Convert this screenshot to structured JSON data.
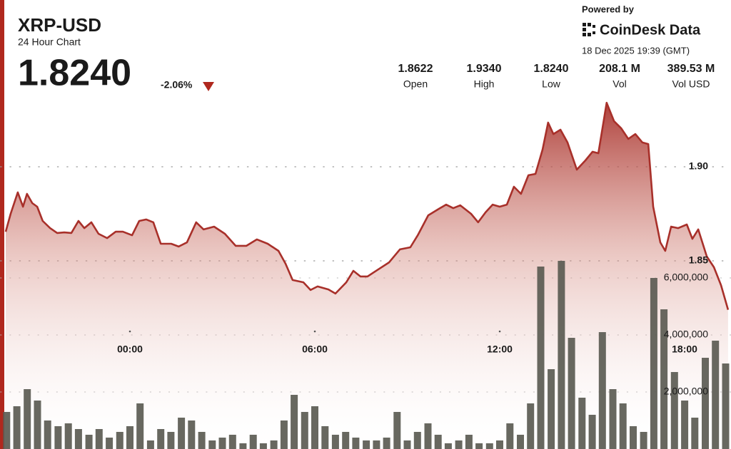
{
  "chart_data": {
    "type": "line",
    "title": "XRP-USD",
    "subtitle": "24 Hour Chart",
    "last_price": "1.8240",
    "change": "-2.06%",
    "powered_by": "Powered by",
    "brand": "CoinDesk Data",
    "timestamp": "18 Dec 2025 19:39 (GMT)",
    "stats": [
      {
        "value": "1.8622",
        "label": "Open"
      },
      {
        "value": "1.9340",
        "label": "High"
      },
      {
        "value": "1.8240",
        "label": "Low"
      },
      {
        "value": "208.1 M",
        "label": "Vol"
      },
      {
        "value": "389.53 M",
        "label": "Vol USD"
      }
    ],
    "xlim": [
      -4.2,
      19.5
    ],
    "xticks": [
      {
        "value": 0,
        "label": "00:00"
      },
      {
        "value": 6,
        "label": "06:00"
      },
      {
        "value": 12,
        "label": "12:00"
      },
      {
        "value": 18,
        "label": "18:00"
      }
    ],
    "ylim": [
      1.75,
      1.94
    ],
    "yticks": [
      1.85,
      {
        "value": 1.9,
        "label": "1.90"
      }
    ],
    "y2lim": [
      0,
      15000000
    ],
    "y2ticks": [
      {
        "value": 2000000,
        "label": "2,000,000"
      },
      {
        "value": 4000000,
        "label": "4,000,000"
      },
      {
        "value": 6000000,
        "label": "6,000,000"
      }
    ],
    "grid": true,
    "series": [
      {
        "type": "line",
        "color": "#a8302a",
        "x": [
          -4.03,
          -3.87,
          -3.64,
          -3.47,
          -3.34,
          -3.17,
          -3.01,
          -2.83,
          -2.59,
          -2.36,
          -2.13,
          -1.9,
          -1.67,
          -1.48,
          -1.25,
          -1.02,
          -0.74,
          -0.46,
          -0.23,
          0.07,
          0.3,
          0.53,
          0.76,
          1.0,
          1.34,
          1.58,
          1.85,
          2.15,
          2.39,
          2.73,
          3.08,
          3.43,
          3.78,
          4.12,
          4.47,
          4.82,
          5.05,
          5.28,
          5.63,
          5.86,
          6.09,
          6.44,
          6.67,
          7.02,
          7.25,
          7.48,
          7.71,
          8.06,
          8.41,
          8.76,
          9.1,
          9.34,
          9.68,
          10.03,
          10.26,
          10.49,
          10.72,
          11.07,
          11.3,
          11.54,
          11.77,
          12.0,
          12.23,
          12.46,
          12.69,
          12.93,
          13.16,
          13.39,
          13.57,
          13.74,
          13.97,
          14.2,
          14.5,
          14.78,
          15.01,
          15.2,
          15.47,
          15.71,
          15.94,
          16.17,
          16.4,
          16.63,
          16.82,
          16.98,
          17.21,
          17.37,
          17.56,
          17.79,
          18.07,
          18.25,
          18.44,
          18.72,
          18.95,
          19.18,
          19.41
        ],
        "values": [
          1.8655,
          1.875,
          1.8864,
          1.8788,
          1.8856,
          1.8807,
          1.8788,
          1.8712,
          1.8674,
          1.8648,
          1.8651,
          1.8648,
          1.8712,
          1.8674,
          1.8705,
          1.8644,
          1.8621,
          1.8655,
          1.8655,
          1.8636,
          1.8712,
          1.872,
          1.8705,
          1.8591,
          1.8591,
          1.8576,
          1.8598,
          1.8705,
          1.8667,
          1.8682,
          1.8644,
          1.858,
          1.858,
          1.8614,
          1.8591,
          1.8553,
          1.8485,
          1.8398,
          1.8386,
          1.8345,
          1.8364,
          1.8348,
          1.8326,
          1.8386,
          1.8447,
          1.8417,
          1.8417,
          1.8455,
          1.8492,
          1.8561,
          1.8572,
          1.8636,
          1.8742,
          1.8777,
          1.8799,
          1.878,
          1.8795,
          1.875,
          1.8705,
          1.8758,
          1.8799,
          1.8788,
          1.8799,
          1.8894,
          1.8856,
          1.8955,
          1.8962,
          1.9091,
          1.9235,
          1.9174,
          1.9197,
          1.9129,
          1.8985,
          1.9034,
          1.908,
          1.9072,
          1.934,
          1.9242,
          1.9205,
          1.9148,
          1.9174,
          1.9129,
          1.9121,
          1.8788,
          1.8598,
          1.8553,
          1.8682,
          1.8674,
          1.8693,
          1.8617,
          1.8667,
          1.8523,
          1.8466,
          1.8371,
          1.824
        ]
      },
      {
        "type": "bar",
        "axis": "y2",
        "color": "#5b5b53",
        "x": [
          -4.0,
          -3.67,
          -3.33,
          -3.0,
          -2.67,
          -2.33,
          -2.0,
          -1.67,
          -1.33,
          -1.0,
          -0.67,
          -0.33,
          0.0,
          0.33,
          0.67,
          1.0,
          1.33,
          1.67,
          2.0,
          2.33,
          2.67,
          3.0,
          3.33,
          3.67,
          4.0,
          4.33,
          4.67,
          5.0,
          5.33,
          5.67,
          6.0,
          6.33,
          6.67,
          7.0,
          7.33,
          7.67,
          8.0,
          8.33,
          8.67,
          9.0,
          9.33,
          9.67,
          10.0,
          10.33,
          10.67,
          11.0,
          11.33,
          11.67,
          12.0,
          12.33,
          12.67,
          13.0,
          13.33,
          13.67,
          14.0,
          14.33,
          14.67,
          15.0,
          15.33,
          15.67,
          16.0,
          16.33,
          16.67,
          17.0,
          17.33,
          17.67,
          18.0,
          18.33,
          18.67,
          19.0,
          19.33
        ],
        "values": [
          1300000,
          1500000,
          2100000,
          1700000,
          1000000,
          800000,
          900000,
          700000,
          500000,
          700000,
          400000,
          600000,
          800000,
          1600000,
          300000,
          700000,
          600000,
          1100000,
          1000000,
          600000,
          300000,
          400000,
          500000,
          200000,
          500000,
          200000,
          300000,
          1000000,
          1900000,
          1300000,
          1500000,
          800000,
          500000,
          600000,
          400000,
          300000,
          300000,
          400000,
          1300000,
          300000,
          600000,
          900000,
          500000,
          200000,
          300000,
          500000,
          200000,
          200000,
          300000,
          900000,
          500000,
          1600000,
          6400000,
          2800000,
          6600000,
          3900000,
          1800000,
          1200000,
          4100000,
          2100000,
          1600000,
          800000,
          600000,
          6000000,
          4900000,
          2700000,
          1700000,
          1100000,
          3200000,
          3800000,
          3000000
        ]
      }
    ]
  }
}
